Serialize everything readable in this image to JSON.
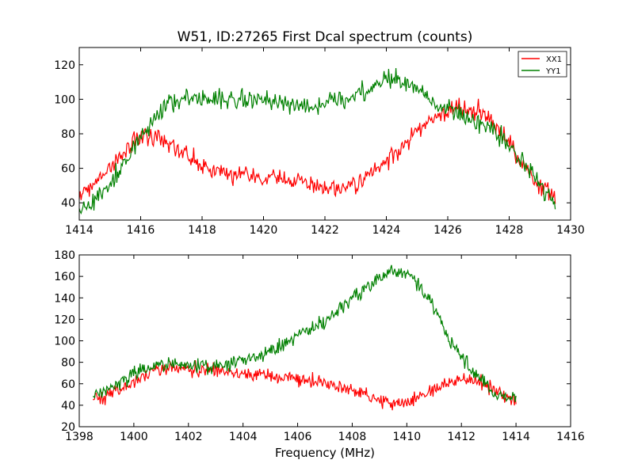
{
  "figure_title": "W51, ID:27265 First Dcal spectrum (counts)",
  "colors": {
    "XX1": "#ff0000",
    "YY1": "#008000"
  },
  "chart_data": [
    {
      "type": "line",
      "xlim": [
        1414,
        1430
      ],
      "ylim": [
        30,
        130
      ],
      "xticks": [
        1414,
        1416,
        1418,
        1420,
        1422,
        1424,
        1426,
        1428,
        1430
      ],
      "yticks": [
        40,
        60,
        80,
        100,
        120
      ],
      "xlabel": "",
      "ylabel": "",
      "grid": false,
      "legend": {
        "position": "top-right",
        "entries": [
          "XX1",
          "YY1"
        ]
      },
      "series": [
        {
          "name": "XX1",
          "color": "#ff0000",
          "x": [
            1414.0,
            1414.5,
            1415.0,
            1415.5,
            1416.0,
            1416.5,
            1417.0,
            1417.5,
            1418.0,
            1418.5,
            1419.0,
            1419.5,
            1420.0,
            1420.5,
            1421.0,
            1421.5,
            1422.0,
            1422.5,
            1423.0,
            1423.5,
            1424.0,
            1424.5,
            1425.0,
            1425.5,
            1426.0,
            1426.5,
            1427.0,
            1427.5,
            1428.0,
            1428.5,
            1429.0,
            1429.5
          ],
          "y": [
            44,
            50,
            60,
            70,
            79,
            79,
            74,
            67,
            62,
            58,
            56,
            55,
            55,
            54,
            53,
            51,
            48,
            47,
            50,
            56,
            64,
            72,
            82,
            89,
            93,
            95,
            94,
            88,
            75,
            62,
            50,
            42
          ]
        },
        {
          "name": "YY1",
          "color": "#008000",
          "x": [
            1414.0,
            1414.5,
            1415.0,
            1415.5,
            1416.0,
            1416.5,
            1417.0,
            1417.5,
            1418.0,
            1418.5,
            1419.0,
            1419.5,
            1420.0,
            1420.5,
            1421.0,
            1421.5,
            1422.0,
            1422.5,
            1423.0,
            1423.5,
            1424.0,
            1424.5,
            1425.0,
            1425.5,
            1426.0,
            1426.5,
            1427.0,
            1427.5,
            1428.0,
            1428.5,
            1429.0,
            1429.5
          ],
          "y": [
            37,
            41,
            50,
            64,
            78,
            90,
            98,
            101,
            101,
            100,
            100,
            99,
            100,
            98,
            96,
            96,
            98,
            100,
            103,
            107,
            112,
            110,
            106,
            100,
            95,
            90,
            86,
            82,
            74,
            63,
            50,
            40
          ]
        }
      ]
    },
    {
      "type": "line",
      "xlim": [
        1398,
        1416
      ],
      "ylim": [
        20,
        180
      ],
      "xticks": [
        1398,
        1400,
        1402,
        1404,
        1406,
        1408,
        1410,
        1412,
        1414,
        1416
      ],
      "yticks": [
        20,
        40,
        60,
        80,
        100,
        120,
        140,
        160,
        180
      ],
      "xlabel": "Frequency (MHz)",
      "ylabel": "",
      "grid": false,
      "series": [
        {
          "name": "XX1",
          "color": "#ff0000",
          "x": [
            1398.5,
            1399.0,
            1399.5,
            1400.0,
            1400.5,
            1401.0,
            1401.5,
            1402.0,
            1402.5,
            1403.0,
            1403.5,
            1404.0,
            1404.5,
            1405.0,
            1405.5,
            1406.0,
            1406.5,
            1407.0,
            1407.5,
            1408.0,
            1408.5,
            1409.0,
            1409.5,
            1410.0,
            1410.5,
            1411.0,
            1411.5,
            1412.0,
            1412.5,
            1413.0,
            1413.5,
            1414.0
          ],
          "y": [
            45,
            48,
            55,
            62,
            69,
            73,
            74,
            74,
            73,
            72,
            71,
            70,
            69,
            67,
            66,
            64,
            62,
            60,
            57,
            54,
            50,
            44,
            42,
            43,
            48,
            55,
            62,
            65,
            63,
            57,
            50,
            46
          ]
        },
        {
          "name": "YY1",
          "color": "#008000",
          "x": [
            1398.5,
            1399.0,
            1399.5,
            1400.0,
            1400.5,
            1401.0,
            1401.5,
            1402.0,
            1402.5,
            1403.0,
            1403.5,
            1404.0,
            1404.5,
            1405.0,
            1405.5,
            1406.0,
            1406.5,
            1407.0,
            1407.5,
            1408.0,
            1408.5,
            1409.0,
            1409.5,
            1410.0,
            1410.5,
            1411.0,
            1411.5,
            1412.0,
            1412.5,
            1413.0,
            1413.5,
            1414.0
          ],
          "y": [
            48,
            55,
            62,
            69,
            74,
            77,
            78,
            77,
            77,
            77,
            78,
            81,
            85,
            90,
            98,
            105,
            112,
            120,
            130,
            140,
            150,
            158,
            163,
            162,
            150,
            130,
            105,
            85,
            68,
            55,
            48,
            46
          ]
        }
      ]
    }
  ]
}
